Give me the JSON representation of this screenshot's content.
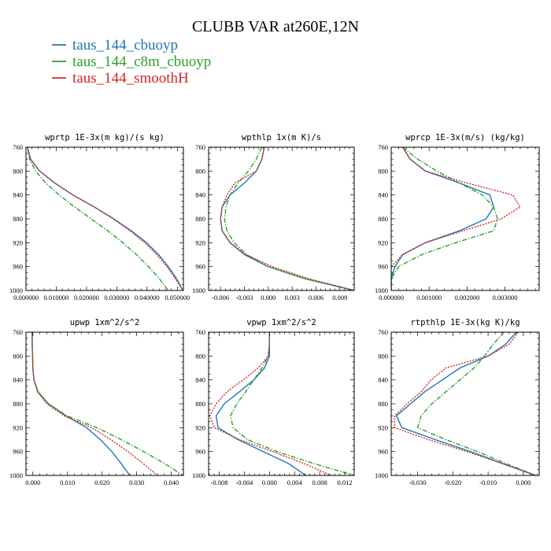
{
  "figure": {
    "title": "CLUBB VAR at260E,12N",
    "legend": [
      {
        "label": "taus_144_cbuoyp",
        "color": "#1f77b4",
        "dash": "solid"
      },
      {
        "label": "taus_144_c8m_cbuoyp",
        "color": "#2ca02c",
        "dash": "dashdot"
      },
      {
        "label": "taus_144_smoothH",
        "color": "#d62728",
        "dash": "dotted"
      }
    ]
  },
  "chart_data": [
    {
      "type": "line",
      "title": "wprtp  1E-3x(m kg)/(s kg)",
      "xlim": [
        0.0,
        0.052
      ],
      "ylim": [
        760,
        1000
      ],
      "y_inverted": true,
      "xticks": [
        "0.000000",
        "0.010000",
        "0.020000",
        "0.030000",
        "0.040000",
        "0.050000"
      ],
      "xtick_values": [
        0.0,
        0.01,
        0.02,
        0.03,
        0.04,
        0.05
      ],
      "yticks": [
        "760",
        "800",
        "840",
        "880",
        "920",
        "960",
        "1000"
      ],
      "y": [
        760,
        780,
        800,
        820,
        840,
        860,
        880,
        900,
        920,
        940,
        960,
        980,
        1000
      ],
      "series": [
        {
          "name": "taus_144_cbuoyp",
          "values": [
            0.0005,
            0.0015,
            0.0045,
            0.0095,
            0.0155,
            0.0225,
            0.029,
            0.0348,
            0.0398,
            0.0438,
            0.047,
            0.0497,
            0.0518
          ]
        },
        {
          "name": "taus_144_c8m_cbuoyp",
          "values": [
            0.0005,
            0.0012,
            0.0032,
            0.0065,
            0.011,
            0.016,
            0.0215,
            0.027,
            0.032,
            0.0365,
            0.0405,
            0.044,
            0.047
          ]
        },
        {
          "name": "taus_144_smoothH",
          "values": [
            0.0005,
            0.0015,
            0.0045,
            0.0095,
            0.0155,
            0.0225,
            0.0288,
            0.0344,
            0.0392,
            0.0432,
            0.0465,
            0.0493,
            0.0518
          ]
        }
      ]
    },
    {
      "type": "line",
      "title": "wpthlp  1x(m K)/s",
      "xlim": [
        -0.0075,
        0.0108
      ],
      "ylim": [
        760,
        1000
      ],
      "y_inverted": true,
      "xticks": [
        "-0.006",
        "-0.003",
        "0.000",
        "0.003",
        "0.006",
        "0.009"
      ],
      "xtick_values": [
        -0.006,
        -0.003,
        0.0,
        0.003,
        0.006,
        0.009
      ],
      "yticks": [
        "760",
        "800",
        "840",
        "880",
        "920",
        "960",
        "1000"
      ],
      "y": [
        760,
        780,
        800,
        820,
        840,
        860,
        880,
        900,
        920,
        940,
        960,
        980,
        1000
      ],
      "series": [
        {
          "name": "taus_144_cbuoyp",
          "values": [
            -0.0005,
            -0.0008,
            -0.0015,
            -0.003,
            -0.0048,
            -0.0058,
            -0.006,
            -0.0058,
            -0.0048,
            -0.003,
            0.0,
            0.0045,
            0.0108
          ]
        },
        {
          "name": "taus_144_c8m_cbuoyp",
          "values": [
            -0.0008,
            -0.0015,
            -0.0025,
            -0.0038,
            -0.0048,
            -0.0053,
            -0.0055,
            -0.0052,
            -0.0043,
            -0.0027,
            0.0,
            0.0045,
            0.0108
          ]
        },
        {
          "name": "taus_144_smoothH",
          "values": [
            -0.0005,
            -0.0008,
            -0.0015,
            -0.0042,
            -0.0052,
            -0.0058,
            -0.006,
            -0.0058,
            -0.0048,
            -0.0028,
            0.0005,
            0.005,
            0.0108
          ]
        }
      ]
    },
    {
      "type": "line",
      "title": "wprcp  1E-3x(m/s) (kg/kg)",
      "xlim": [
        0.0,
        0.0039
      ],
      "ylim": [
        760,
        1000
      ],
      "y_inverted": true,
      "xticks": [
        "0.000000",
        "0.001000",
        "0.002000",
        "0.003000"
      ],
      "xtick_values": [
        0.0,
        0.001,
        0.002,
        0.003
      ],
      "yticks": [
        "760",
        "800",
        "840",
        "880",
        "920",
        "960",
        "1000"
      ],
      "y": [
        760,
        780,
        800,
        820,
        840,
        860,
        880,
        900,
        920,
        940,
        960,
        980,
        1000
      ],
      "series": [
        {
          "name": "taus_144_cbuoyp",
          "values": [
            0.0003,
            0.0005,
            0.0009,
            0.0018,
            0.0026,
            0.0027,
            0.0025,
            0.0018,
            0.0009,
            0.0003,
            0.0001,
            0.0,
            0.0
          ]
        },
        {
          "name": "taus_144_c8m_cbuoyp",
          "values": [
            0.0003,
            0.0007,
            0.0012,
            0.0018,
            0.0024,
            0.0027,
            0.0028,
            0.0027,
            0.0017,
            0.0008,
            0.0002,
            0.0,
            0.0
          ]
        },
        {
          "name": "taus_144_smoothH",
          "values": [
            0.0003,
            0.0005,
            0.0009,
            0.002,
            0.0032,
            0.0034,
            0.0029,
            0.0019,
            0.0009,
            0.0003,
            0.0,
            0.0,
            0.0
          ]
        }
      ]
    },
    {
      "type": "line",
      "title": "upwp  1xm^2/s^2",
      "xlim": [
        -0.002,
        0.0435
      ],
      "ylim": [
        760,
        1000
      ],
      "y_inverted": true,
      "xticks": [
        "0.000",
        "0.010",
        "0.020",
        "0.030",
        "0.040"
      ],
      "xtick_values": [
        0.0,
        0.01,
        0.02,
        0.03,
        0.04
      ],
      "yticks": [
        "760",
        "800",
        "840",
        "880",
        "920",
        "960",
        "1000"
      ],
      "y": [
        760,
        780,
        800,
        820,
        840,
        860,
        880,
        900,
        920,
        940,
        960,
        980,
        1000
      ],
      "series": [
        {
          "name": "taus_144_cbuoyp",
          "values": [
            -0.0002,
            -0.0002,
            -0.0001,
            0.0,
            0.0003,
            0.0015,
            0.0045,
            0.0095,
            0.0155,
            0.0195,
            0.0228,
            0.0255,
            0.028
          ]
        },
        {
          "name": "taus_144_c8m_cbuoyp",
          "values": [
            -0.0002,
            -0.0002,
            -0.0001,
            0.0,
            0.0003,
            0.0015,
            0.0045,
            0.0098,
            0.0185,
            0.0255,
            0.032,
            0.038,
            0.0435
          ]
        },
        {
          "name": "taus_144_smoothH",
          "values": [
            -0.0002,
            -0.0002,
            -0.0001,
            0.0,
            0.0003,
            0.0013,
            0.004,
            0.009,
            0.017,
            0.0225,
            0.0275,
            0.0318,
            0.036
          ]
        }
      ]
    },
    {
      "type": "line",
      "title": "vpwp  1xm^2/s^2",
      "xlim": [
        -0.0097,
        0.0135
      ],
      "ylim": [
        760,
        1000
      ],
      "y_inverted": true,
      "xticks": [
        "-0.008",
        "-0.004",
        "0.000",
        "0.004",
        "0.008",
        "0.012"
      ],
      "xtick_values": [
        -0.008,
        -0.004,
        0.0,
        0.004,
        0.008,
        0.012
      ],
      "yticks": [
        "760",
        "800",
        "840",
        "880",
        "920",
        "960",
        "1000"
      ],
      "y": [
        760,
        780,
        800,
        820,
        840,
        860,
        880,
        900,
        920,
        940,
        960,
        980,
        1000
      ],
      "series": [
        {
          "name": "taus_144_cbuoyp",
          "values": [
            0.0,
            0.0,
            0.0,
            -0.0008,
            -0.0025,
            -0.0048,
            -0.0072,
            -0.0085,
            -0.0082,
            -0.005,
            -0.001,
            0.003,
            0.0058
          ]
        },
        {
          "name": "taus_144_c8m_cbuoyp",
          "values": [
            0.0,
            0.0,
            -0.0002,
            -0.0012,
            -0.0025,
            -0.0038,
            -0.0052,
            -0.0062,
            -0.0058,
            -0.0035,
            0.0012,
            0.007,
            0.0135
          ]
        },
        {
          "name": "taus_144_smoothH",
          "values": [
            0.0,
            0.0,
            -0.0002,
            -0.0018,
            -0.0042,
            -0.0068,
            -0.0085,
            -0.0095,
            -0.0088,
            -0.0048,
            0.0005,
            0.0055,
            0.0098
          ]
        }
      ]
    },
    {
      "type": "line",
      "title": "rtpthlp  1E-3x(kg K)/kg",
      "xlim": [
        -0.0375,
        0.0045
      ],
      "ylim": [
        760,
        1000
      ],
      "y_inverted": true,
      "xticks": [
        "-0.030",
        "-0.020",
        "-0.010",
        "0.000"
      ],
      "xtick_values": [
        -0.03,
        -0.02,
        -0.01,
        0.0
      ],
      "yticks": [
        "760",
        "800",
        "840",
        "880",
        "920",
        "960",
        "1000"
      ],
      "y": [
        760,
        780,
        800,
        820,
        840,
        860,
        880,
        900,
        920,
        940,
        960,
        980,
        1000
      ],
      "series": [
        {
          "name": "taus_144_cbuoyp",
          "values": [
            -0.002,
            -0.005,
            -0.01,
            -0.018,
            -0.023,
            -0.028,
            -0.032,
            -0.036,
            -0.0345,
            -0.025,
            -0.015,
            -0.006,
            0.0035
          ]
        },
        {
          "name": "taus_144_c8m_cbuoyp",
          "values": [
            -0.0055,
            -0.0085,
            -0.011,
            -0.014,
            -0.018,
            -0.022,
            -0.026,
            -0.029,
            -0.03,
            -0.022,
            -0.013,
            -0.005,
            0.0035
          ]
        },
        {
          "name": "taus_144_smoothH",
          "values": [
            -0.0015,
            -0.004,
            -0.01,
            -0.022,
            -0.0262,
            -0.029,
            -0.033,
            -0.0365,
            -0.0365,
            -0.027,
            -0.016,
            -0.006,
            0.0035
          ]
        }
      ]
    }
  ]
}
